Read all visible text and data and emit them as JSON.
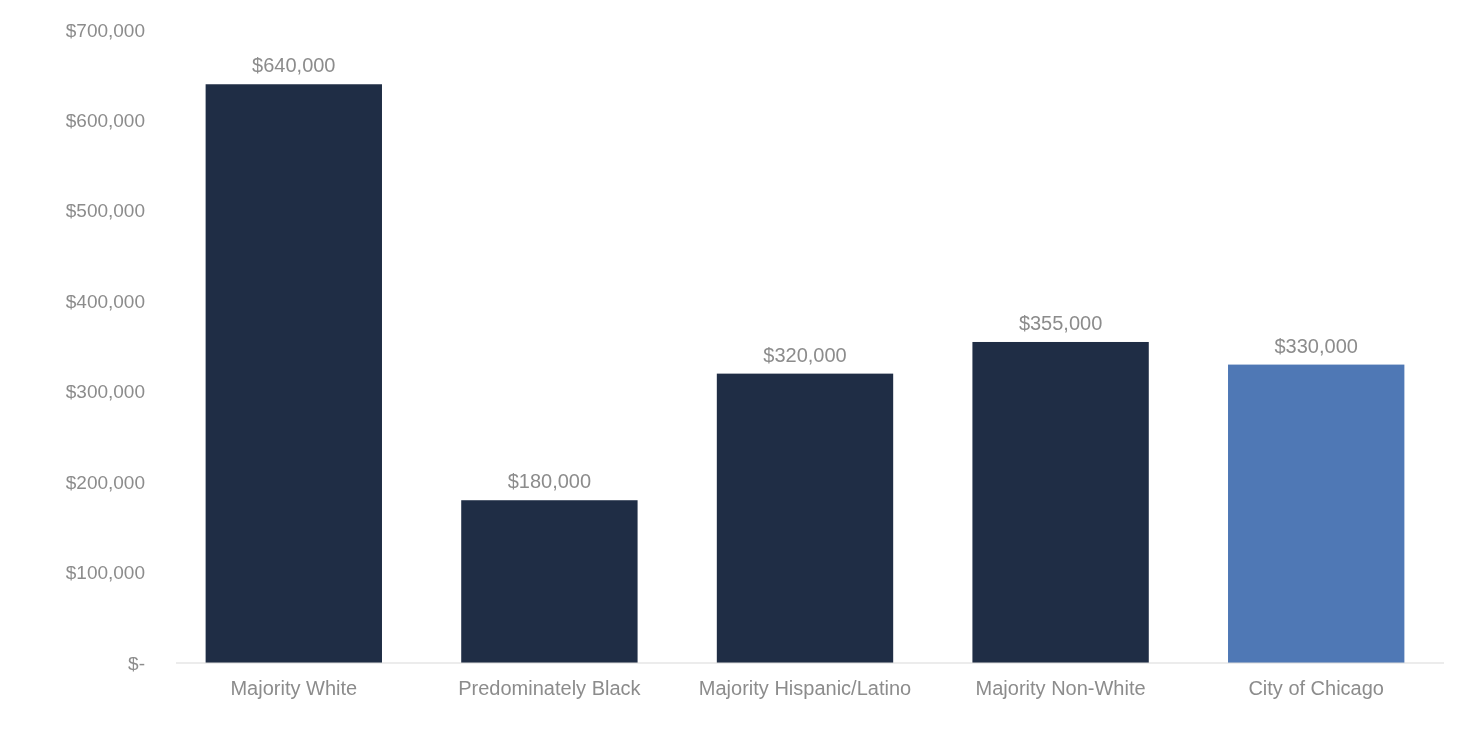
{
  "chart_data": {
    "type": "bar",
    "categories": [
      "Majority White",
      "Predominately Black",
      "Majority Hispanic/Latino",
      "Majority Non-White",
      "City of Chicago"
    ],
    "values": [
      640000,
      180000,
      320000,
      355000,
      330000
    ],
    "colors": [
      "#1f2d45",
      "#1f2d45",
      "#1f2d45",
      "#1f2d45",
      "#4f78b5"
    ],
    "value_labels": [
      "$640,000",
      "$180,000",
      "$320,000",
      "$355,000",
      "$330,000"
    ],
    "ylim": [
      0,
      700000
    ],
    "yticks": [
      {
        "value": 0,
        "label": "$-"
      },
      {
        "value": 100000,
        "label": "$100,000"
      },
      {
        "value": 200000,
        "label": "$200,000"
      },
      {
        "value": 300000,
        "label": "$300,000"
      },
      {
        "value": 400000,
        "label": "$400,000"
      },
      {
        "value": 500000,
        "label": "$500,000"
      },
      {
        "value": 600000,
        "label": "$600,000"
      },
      {
        "value": 700000,
        "label": "$700,000"
      }
    ],
    "grid": false
  }
}
